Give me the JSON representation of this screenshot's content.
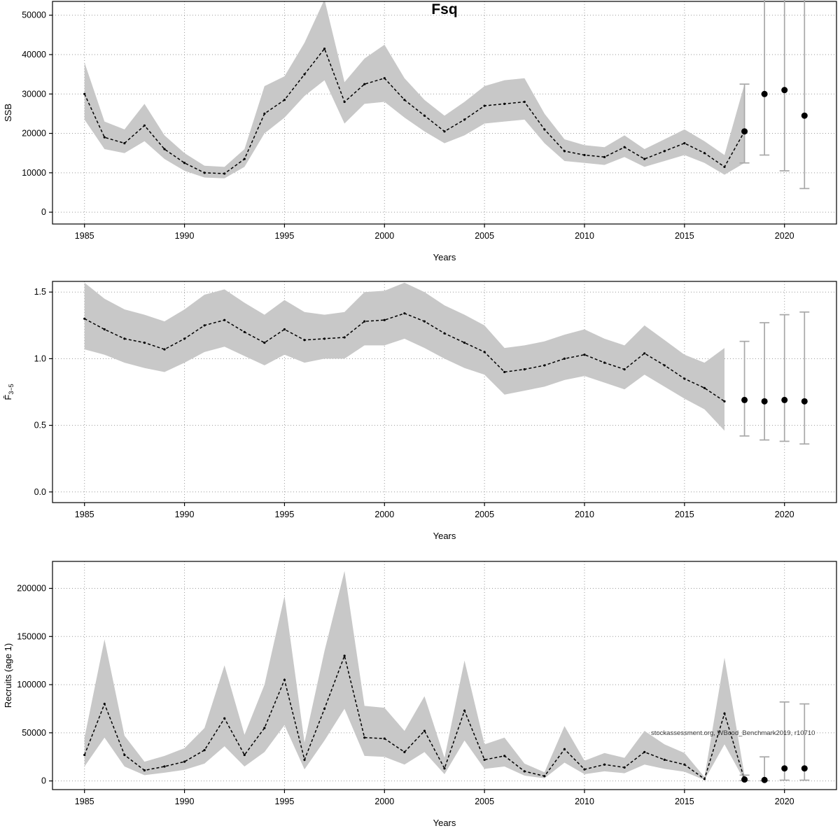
{
  "title": "Fsq",
  "watermark": "stockassessment.org, WBcod_Benchmark2019, r10710",
  "chart_data": [
    {
      "type": "line",
      "title": "Fsq",
      "xlabel": "Years",
      "ylabel": "SSB",
      "ylabel_sub": "",
      "xlim": [
        1983.4,
        2022.6
      ],
      "ylim": [
        -3000,
        53500
      ],
      "xticks": [
        1985,
        1990,
        1995,
        2000,
        2005,
        2010,
        2015,
        2020
      ],
      "xtick_labels": [
        "1985",
        "1990",
        "1995",
        "2000",
        "2005",
        "2010",
        "2015",
        "2020"
      ],
      "ytick_values": [
        0,
        10000,
        20000,
        30000,
        40000,
        50000
      ],
      "ytick_labels": [
        "0",
        "10000",
        "20000",
        "30000",
        "40000",
        "50000"
      ],
      "x": [
        1985,
        1986,
        1987,
        1988,
        1989,
        1990,
        1991,
        1992,
        1993,
        1994,
        1995,
        1996,
        1997,
        1998,
        1999,
        2000,
        2001,
        2002,
        2003,
        2004,
        2005,
        2006,
        2007,
        2008,
        2009,
        2010,
        2011,
        2012,
        2013,
        2014,
        2015,
        2016,
        2017,
        2018
      ],
      "values": [
        30000,
        19000,
        17500,
        22000,
        16000,
        12500,
        10000,
        9800,
        13500,
        25000,
        28500,
        35000,
        41500,
        28000,
        32500,
        34000,
        28500,
        24500,
        20500,
        23500,
        27000,
        27500,
        28000,
        21000,
        15500,
        14500,
        14000,
        16500,
        13500,
        15500,
        17500,
        15000,
        11500,
        20500
      ],
      "lower": [
        23500,
        16000,
        15000,
        18000,
        13500,
        10500,
        8800,
        8600,
        11500,
        20000,
        24000,
        29500,
        33500,
        22500,
        27500,
        28000,
        24000,
        20500,
        17500,
        19500,
        22500,
        23000,
        23500,
        17500,
        13000,
        12500,
        12000,
        14000,
        11500,
        13000,
        14500,
        12500,
        9500,
        12500
      ],
      "upper": [
        38000,
        23000,
        21000,
        27500,
        19500,
        15000,
        11800,
        11500,
        16000,
        32000,
        34500,
        43000,
        54000,
        33000,
        39000,
        42500,
        34000,
        28500,
        24500,
        28000,
        32000,
        33500,
        34000,
        25000,
        18500,
        17000,
        16500,
        19500,
        16000,
        18500,
        21000,
        18000,
        14500,
        32500
      ],
      "forecast": {
        "x": [
          2018,
          2019,
          2020,
          2021
        ],
        "values": [
          20500,
          30000,
          31000,
          24500
        ],
        "lower": [
          12500,
          14500,
          10500,
          6000
        ],
        "upper": [
          32500,
          56000,
          57000,
          56000
        ]
      }
    },
    {
      "type": "line",
      "title": "",
      "xlabel": "Years",
      "ylabel": "F̄",
      "ylabel_sub": "3−5",
      "xlim": [
        1983.4,
        2022.6
      ],
      "ylim": [
        -0.08,
        1.58
      ],
      "xticks": [
        1985,
        1990,
        1995,
        2000,
        2005,
        2010,
        2015,
        2020
      ],
      "xtick_labels": [
        "1985",
        "1990",
        "1995",
        "2000",
        "2005",
        "2010",
        "2015",
        "2020"
      ],
      "ytick_values": [
        0.0,
        0.5,
        1.0,
        1.5
      ],
      "ytick_labels": [
        "0.0",
        "0.5",
        "1.0",
        "1.5"
      ],
      "x": [
        1985,
        1986,
        1987,
        1988,
        1989,
        1990,
        1991,
        1992,
        1993,
        1994,
        1995,
        1996,
        1997,
        1998,
        1999,
        2000,
        2001,
        2002,
        2003,
        2004,
        2005,
        2006,
        2007,
        2008,
        2009,
        2010,
        2011,
        2012,
        2013,
        2014,
        2015,
        2016,
        2017
      ],
      "values": [
        1.3,
        1.22,
        1.15,
        1.12,
        1.07,
        1.15,
        1.25,
        1.29,
        1.2,
        1.12,
        1.22,
        1.14,
        1.15,
        1.16,
        1.28,
        1.29,
        1.34,
        1.28,
        1.19,
        1.12,
        1.05,
        0.9,
        0.92,
        0.95,
        1.0,
        1.03,
        0.97,
        0.92,
        1.04,
        0.95,
        0.85,
        0.78,
        0.68
      ],
      "lower": [
        1.07,
        1.03,
        0.97,
        0.93,
        0.9,
        0.97,
        1.05,
        1.09,
        1.02,
        0.95,
        1.03,
        0.97,
        1.0,
        1.0,
        1.1,
        1.1,
        1.15,
        1.08,
        1.0,
        0.93,
        0.88,
        0.73,
        0.76,
        0.79,
        0.84,
        0.87,
        0.82,
        0.77,
        0.88,
        0.79,
        0.7,
        0.62,
        0.46
      ],
      "upper": [
        1.57,
        1.45,
        1.37,
        1.33,
        1.28,
        1.37,
        1.48,
        1.52,
        1.42,
        1.33,
        1.44,
        1.35,
        1.33,
        1.35,
        1.5,
        1.51,
        1.57,
        1.5,
        1.4,
        1.33,
        1.25,
        1.08,
        1.1,
        1.13,
        1.18,
        1.22,
        1.15,
        1.1,
        1.25,
        1.14,
        1.03,
        0.97,
        1.08
      ],
      "forecast": {
        "x": [
          2018,
          2019,
          2020,
          2021
        ],
        "values": [
          0.69,
          0.68,
          0.69,
          0.68
        ],
        "lower": [
          0.42,
          0.39,
          0.38,
          0.36
        ],
        "upper": [
          1.13,
          1.27,
          1.33,
          1.35
        ]
      }
    },
    {
      "type": "line",
      "title": "",
      "xlabel": "Years",
      "ylabel": "Recruits (age 1)",
      "ylabel_sub": "",
      "xlim": [
        1983.4,
        2022.6
      ],
      "ylim": [
        -9000,
        228000
      ],
      "xticks": [
        1985,
        1990,
        1995,
        2000,
        2005,
        2010,
        2015,
        2020
      ],
      "xtick_labels": [
        "1985",
        "1990",
        "1995",
        "2000",
        "2005",
        "2010",
        "2015",
        "2020"
      ],
      "ytick_values": [
        0,
        50000,
        100000,
        150000,
        200000
      ],
      "ytick_labels": [
        "0",
        "50000",
        "100000",
        "150000",
        "200000"
      ],
      "x": [
        1985,
        1986,
        1987,
        1988,
        1989,
        1990,
        1991,
        1992,
        1993,
        1994,
        1995,
        1996,
        1997,
        1998,
        1999,
        2000,
        2001,
        2002,
        2003,
        2004,
        2005,
        2006,
        2007,
        2008,
        2009,
        2010,
        2011,
        2012,
        2013,
        2014,
        2015,
        2016,
        2017,
        2018
      ],
      "values": [
        27000,
        80000,
        27000,
        11000,
        15000,
        20000,
        32000,
        65000,
        27000,
        55000,
        105000,
        22000,
        75000,
        130000,
        45000,
        44000,
        30000,
        52000,
        13000,
        73000,
        22000,
        26000,
        10000,
        5000,
        33000,
        12000,
        17000,
        14000,
        30000,
        22000,
        17000,
        2000,
        70000,
        1500
      ],
      "lower": [
        15000,
        45000,
        15000,
        6000,
        8500,
        11500,
        18000,
        36000,
        15000,
        30000,
        58000,
        12000,
        42000,
        75000,
        26000,
        25000,
        17000,
        30000,
        7000,
        42000,
        12500,
        15000,
        5500,
        2800,
        19000,
        7000,
        10000,
        8000,
        17000,
        12500,
        9500,
        1000,
        38000,
        300
      ],
      "upper": [
        45000,
        147000,
        47000,
        20000,
        26000,
        34000,
        55000,
        120000,
        48000,
        100000,
        192000,
        40000,
        135000,
        218000,
        78000,
        76000,
        52000,
        88000,
        24000,
        125000,
        38000,
        45000,
        18000,
        9000,
        57000,
        21000,
        29000,
        24000,
        52000,
        38000,
        29000,
        4000,
        128000,
        6000
      ],
      "forecast": {
        "x": [
          2018,
          2019,
          2020,
          2021
        ],
        "values": [
          1500,
          1000,
          13000,
          13000
        ],
        "lower": [
          300,
          200,
          800,
          800
        ],
        "upper": [
          6000,
          25000,
          82000,
          80000
        ]
      }
    }
  ]
}
